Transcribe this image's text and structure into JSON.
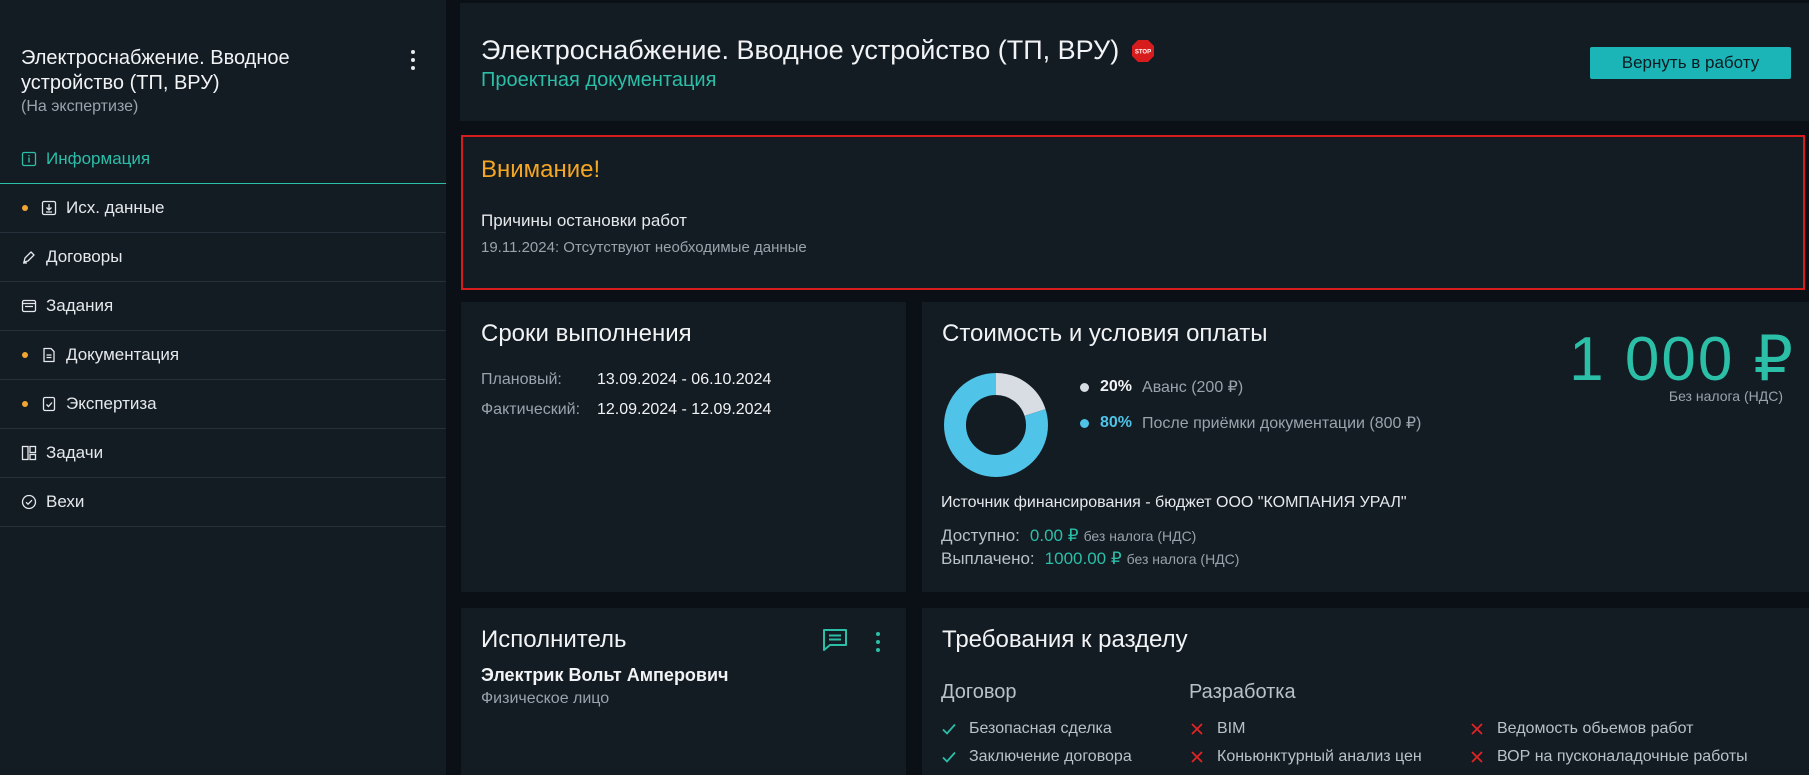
{
  "colors": {
    "accent": "#2bbfa8",
    "warning_border": "#d61c1c",
    "warning_title": "#f5a623",
    "bullet_orange": "#f1a533",
    "donut_primary": "#4fc3e8",
    "donut_secondary": "#d8dde3"
  },
  "sidebar": {
    "title": "Электроснабжение. Вводное устройство (ТП, ВРУ)",
    "status": "(На экспертизе)",
    "items": [
      {
        "label": "Информация",
        "icon": "info-icon"
      },
      {
        "label": "Исх. данные",
        "icon": "download-icon"
      },
      {
        "label": "Договоры",
        "icon": "pen-icon"
      },
      {
        "label": "Задания",
        "icon": "tasks-window-icon"
      },
      {
        "label": "Документация",
        "icon": "document-icon"
      },
      {
        "label": "Экспертиза",
        "icon": "checklist-icon"
      },
      {
        "label": "Задачи",
        "icon": "kanban-icon"
      },
      {
        "label": "Вехи",
        "icon": "check-circle-icon"
      }
    ]
  },
  "header": {
    "title": "Электроснабжение. Вводное устройство (ТП, ВРУ)",
    "stop_text": "STOP",
    "subtitle": "Проектная документация",
    "return_button": "Вернуть в работу"
  },
  "warning": {
    "title": "Внимание!",
    "reason_title": "Причины остановки работ",
    "reason_detail": "19.11.2024: Отсутствуют необходимые данные"
  },
  "deadlines": {
    "title": "Сроки выполнения",
    "rows": [
      {
        "label": "Плановый:",
        "value": "13.09.2024 - 06.10.2024"
      },
      {
        "label": "Фактический:",
        "value": "12.09.2024 - 12.09.2024"
      }
    ]
  },
  "cost": {
    "title": "Стоимость и условия оплаты",
    "price": "1 000 ₽",
    "price_note": "Без налога (НДС)",
    "payments": [
      {
        "percent": "20%",
        "label": "Аванс (200 ₽)",
        "share": 0.2,
        "color": "#d8dde3",
        "pct_color": "#f1f3f5"
      },
      {
        "percent": "80%",
        "label": "После приёмки документации (800 ₽)",
        "share": 0.8,
        "color": "#4fc3e8",
        "pct_color": "#4fc3e8"
      }
    ],
    "funding_source": "Источник финансирования - бюджет ООО \"КОМПАНИЯ УРАЛ\"",
    "available_label": "Доступно:",
    "available_amount": "0.00 ₽",
    "available_note": "без налога (НДС)",
    "paid_label": "Выплачено:",
    "paid_amount": "1000.00 ₽",
    "paid_note": "без налога (НДС)"
  },
  "executor": {
    "title": "Исполнитель",
    "name": "Электрик Вольт Амперович",
    "type": "Физическое лицо"
  },
  "requirements": {
    "title": "Требования к разделу",
    "col1_title": "Договор",
    "col1_items": [
      "Безопасная сделка",
      "Заключение договора"
    ],
    "col2_title": "Разработка",
    "col2_items": [
      "BIM",
      "Коньюнктурный анализ цен"
    ],
    "col3_items": [
      "Ведомость обьемов работ",
      "ВОР на пусконаладочные работы"
    ]
  }
}
